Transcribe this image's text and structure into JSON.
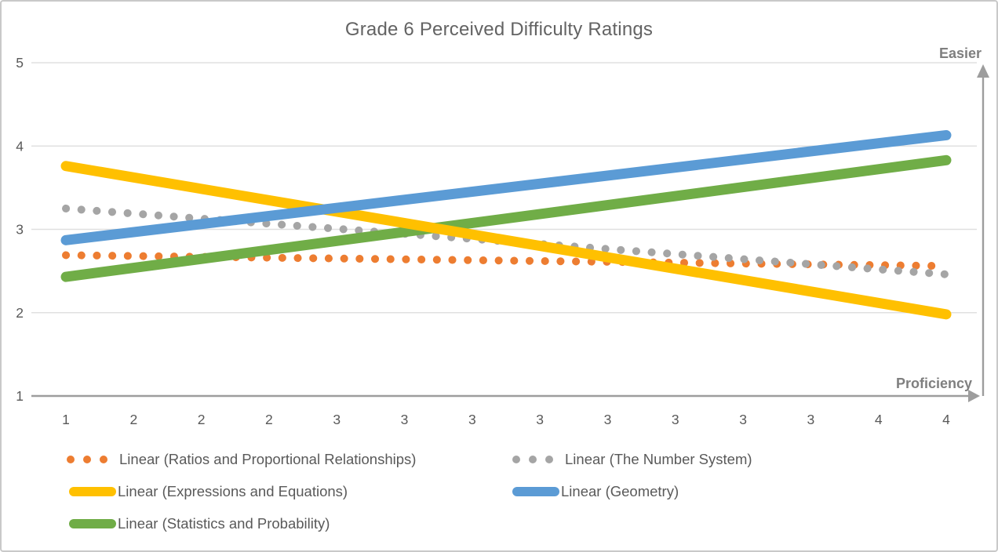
{
  "chart": {
    "title": "Grade 6 Perceived Difficulty Ratings",
    "easier_label": "Easier",
    "proficiency_label": "Proficiency"
  },
  "chart_data": {
    "type": "line",
    "title": "Grade 6 Perceived Difficulty Ratings",
    "xlabel": "Proficiency",
    "y_annotation": "Easier",
    "x_tick_labels": [
      "1",
      "2",
      "2",
      "2",
      "3",
      "3",
      "3",
      "3",
      "3",
      "3",
      "3",
      "3",
      "4",
      "4"
    ],
    "y_ticks": [
      1,
      2,
      3,
      4,
      5
    ],
    "ylim": [
      1,
      5
    ],
    "grid": "horizontal",
    "legend_position": "bottom",
    "series": [
      {
        "id": "ratios",
        "name": "Linear (Ratios and Proportional Relationships)",
        "color": "#ED7D31",
        "style": "dotted",
        "trend_start": 2.69,
        "trend_end": 2.56
      },
      {
        "id": "number-system",
        "name": "Linear (The Number System)",
        "color": "#A5A5A5",
        "style": "dotted",
        "trend_start": 3.25,
        "trend_end": 2.46
      },
      {
        "id": "expressions",
        "name": "Linear (Expressions and Equations)",
        "color": "#FFC000",
        "style": "solid",
        "trend_start": 3.76,
        "trend_end": 1.98
      },
      {
        "id": "geometry",
        "name": "Linear (Geometry)",
        "color": "#5B9BD5",
        "style": "solid",
        "trend_start": 2.87,
        "trend_end": 4.13
      },
      {
        "id": "statistics",
        "name": "Linear (Statistics and Probability)",
        "color": "#70AD47",
        "style": "solid",
        "trend_start": 2.43,
        "trend_end": 3.83
      }
    ],
    "draw_order": [
      0,
      1,
      4,
      2,
      3
    ],
    "colors": {
      "title_text": "#636363",
      "axis_text": "#595959",
      "legend_text": "#595959",
      "annotation_text": "#7F7F7F",
      "gridline": "#E0E0E0",
      "axis_arrow": "#9D9D9D"
    }
  }
}
